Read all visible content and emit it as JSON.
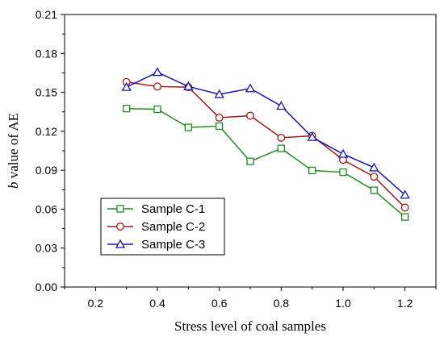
{
  "chart_data": {
    "type": "line",
    "xlabel": "Stress level of coal samples",
    "ylabel_italic": "b",
    "ylabel_rest": " value of AE",
    "xlim": [
      0.1,
      1.3
    ],
    "ylim": [
      0.0,
      0.21
    ],
    "xticks": [
      "0.2",
      "0.4",
      "0.6",
      "0.8",
      "1.0",
      "1.2"
    ],
    "yticks": [
      "0.00",
      "0.03",
      "0.06",
      "0.09",
      "0.12",
      "0.15",
      "0.18",
      "0.21"
    ],
    "legend_position": "bottom-left",
    "grid": false,
    "x": [
      0.3,
      0.4,
      0.5,
      0.6,
      0.7,
      0.8,
      0.9,
      1.0,
      1.1,
      1.2
    ],
    "series": [
      {
        "name": "Sample C-1",
        "marker": "square",
        "color": "#1f8c1f",
        "values": [
          0.1375,
          0.137,
          0.123,
          0.124,
          0.0968,
          0.1068,
          0.0898,
          0.0885,
          0.0745,
          0.054
        ]
      },
      {
        "name": "Sample C-2",
        "marker": "circle",
        "color": "#a01818",
        "values": [
          0.158,
          0.1545,
          0.154,
          0.1305,
          0.132,
          0.115,
          0.1165,
          0.098,
          0.085,
          0.0612
        ]
      },
      {
        "name": "Sample C-3",
        "marker": "triangle",
        "color": "#1414b4",
        "values": [
          0.154,
          0.1655,
          0.1545,
          0.1485,
          0.153,
          0.1395,
          0.1155,
          0.1025,
          0.092,
          0.071
        ]
      }
    ]
  }
}
